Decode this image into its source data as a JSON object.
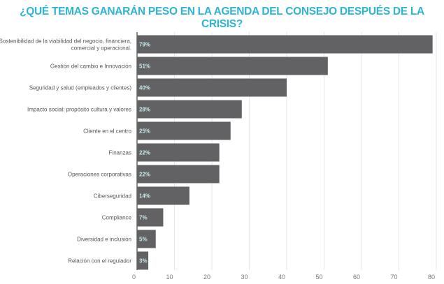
{
  "chart_data": {
    "type": "bar",
    "orientation": "horizontal",
    "title": "¿QUÉ TEMAS GANARÁN PESO EN LA AGENDA DEL CONSEJO DESPUÉS DE LA CRISIS?",
    "categories": [
      [
        "Sostenibilidad de la viabilidad del negocio, financiera,",
        "comercial y operacional."
      ],
      [
        "Gestión del cambio e Innovación"
      ],
      [
        "Seguridad y salud (empleados y clientes)"
      ],
      [
        "Impacto social: propósito cultura y valores"
      ],
      [
        "Cliente en el centro"
      ],
      [
        "Finanzas"
      ],
      [
        "Operaciones corporativas"
      ],
      [
        "Ciberseguridad"
      ],
      [
        "Compliance"
      ],
      [
        "Diversidad e inclusión"
      ],
      [
        "Relación con el regulador"
      ]
    ],
    "values": [
      79,
      51,
      40,
      28,
      25,
      22,
      22,
      14,
      7,
      5,
      3
    ],
    "data_labels": [
      "79%",
      "51%",
      "40%",
      "28%",
      "25%",
      "22%",
      "22%",
      "14%",
      "7%",
      "5%",
      "3%"
    ],
    "xlim": [
      0,
      80
    ],
    "xticks": [
      0,
      10,
      20,
      30,
      40,
      50,
      60,
      70,
      80
    ],
    "grid": true,
    "legend": "none",
    "colors": {
      "title": "#2fb4d4",
      "bar": "#626163",
      "data_label": "#c8ecf0",
      "text": "#555555",
      "grid": "#e6e6e6"
    }
  }
}
